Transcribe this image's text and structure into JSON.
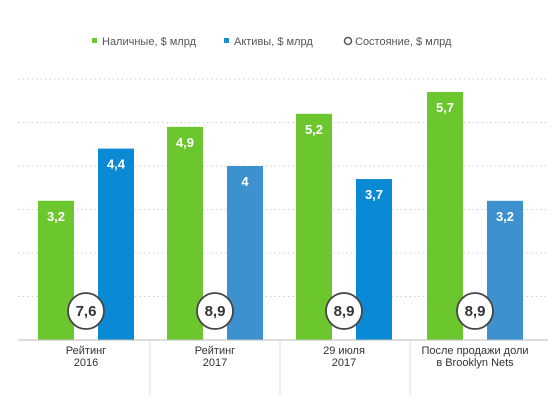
{
  "chart_data": {
    "type": "bar",
    "title": "",
    "xlabel": "",
    "ylabel": "",
    "ylim": [
      0,
      6
    ],
    "grid": true,
    "legend_placement": "top",
    "categories": [
      [
        "Рейтинг",
        "2016"
      ],
      [
        "Рейтинг",
        "2017"
      ],
      [
        "29 июля",
        "2017"
      ],
      [
        "После продажи доли",
        "в Brooklyn Nets"
      ]
    ],
    "series": [
      {
        "name": "Наличные, $ млрд",
        "color": "#6cc72e",
        "values": [
          3.2,
          4.9,
          5.2,
          5.7
        ],
        "labels": [
          "3,2",
          "4,9",
          "5,2",
          "5,7"
        ]
      },
      {
        "name": "Активы, $ млрд",
        "color": "#1b8fd0",
        "colors": [
          "#0a8ad4",
          "#3d91cf",
          "#0a8ad4",
          "#3d91cf"
        ],
        "values": [
          4.4,
          4.0,
          3.7,
          3.2
        ],
        "labels": [
          "4,4",
          "4",
          "3,7",
          "3,2"
        ]
      }
    ],
    "state_series": {
      "name": "Состояние, $ млрд",
      "values": [
        7.6,
        8.9,
        8.9,
        8.9
      ],
      "labels": [
        "7,6",
        "8,9",
        "8,9",
        "8,9"
      ]
    }
  }
}
